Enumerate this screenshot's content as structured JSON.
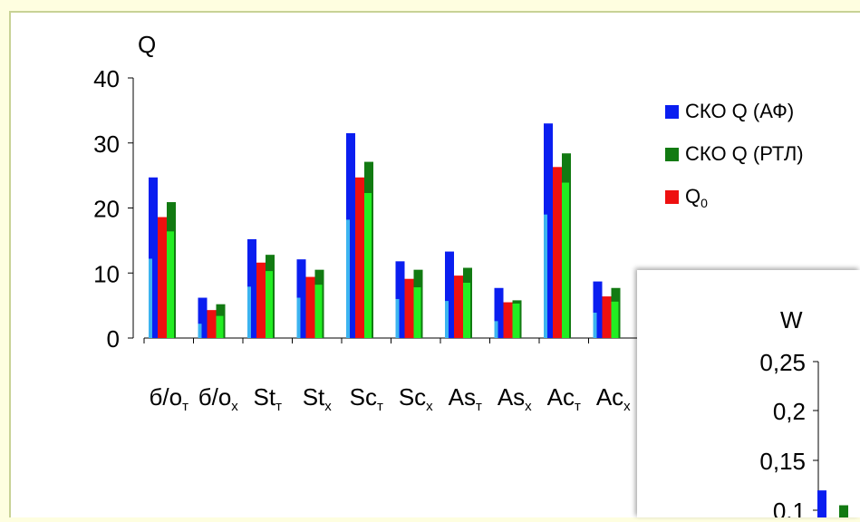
{
  "chart_data": [
    {
      "type": "bar",
      "ylabel": "Q",
      "ylim": [
        0,
        40
      ],
      "yticks": [
        0,
        10,
        20,
        30,
        40
      ],
      "categories": [
        {
          "base": "б/о",
          "sub": "т"
        },
        {
          "base": "б/о",
          "sub": "х"
        },
        {
          "base": "St",
          "sub": "т"
        },
        {
          "base": "St",
          "sub": "х"
        },
        {
          "base": "Sc",
          "sub": "т"
        },
        {
          "base": "Sc",
          "sub": "х"
        },
        {
          "base": "As",
          "sub": "т"
        },
        {
          "base": "As",
          "sub": "х"
        },
        {
          "base": "Ac",
          "sub": "т"
        },
        {
          "base": "Ac",
          "sub": "х"
        }
      ],
      "series": [
        {
          "name": "СКО Q (АФ)",
          "color": "#0a1ef0",
          "light_color": "#3cb4f0",
          "values": [
            24.7,
            6.2,
            15.2,
            12.1,
            31.5,
            11.8,
            13.3,
            7.7,
            33.0,
            8.7
          ],
          "inner_values": [
            12.2,
            2.2,
            7.9,
            6.2,
            18.2,
            6.0,
            5.7,
            2.6,
            19.0,
            3.9
          ]
        },
        {
          "name": "Q",
          "name_sub": "0",
          "color": "#ee1010",
          "values": [
            18.6,
            4.3,
            11.6,
            9.4,
            24.7,
            9.1,
            9.6,
            5.5,
            26.3,
            6.4
          ]
        },
        {
          "name": "СКО Q (РТЛ)",
          "color": "#127a12",
          "light_color": "#22ee22",
          "values": [
            20.9,
            5.2,
            12.8,
            10.5,
            27.1,
            10.5,
            10.8,
            5.8,
            28.4,
            7.7
          ],
          "inner_values": [
            16.4,
            3.4,
            10.3,
            8.2,
            22.3,
            7.8,
            8.5,
            5.3,
            23.9,
            5.6
          ]
        }
      ],
      "legend": [
        {
          "label": "СКО Q (АФ)",
          "sub": "",
          "color": "#0a1ef0"
        },
        {
          "label": "СКО Q (РТЛ)",
          "sub": "",
          "color": "#127a12"
        },
        {
          "label": "Q",
          "sub": "0",
          "color": "#ee1010"
        }
      ],
      "legend_position": "right"
    },
    {
      "type": "bar",
      "ylabel": "W",
      "ylim": [
        0,
        0.25
      ],
      "yticks": [
        "0,25",
        "0,2",
        "0,15",
        "0,1"
      ],
      "series": [
        {
          "name": "СКО Q (АФ)",
          "color": "#0a1ef0",
          "values": [
            0.12
          ]
        },
        {
          "name": "СКО Q (РТЛ)",
          "color": "#127a12",
          "values": [
            0.105
          ]
        }
      ]
    }
  ]
}
